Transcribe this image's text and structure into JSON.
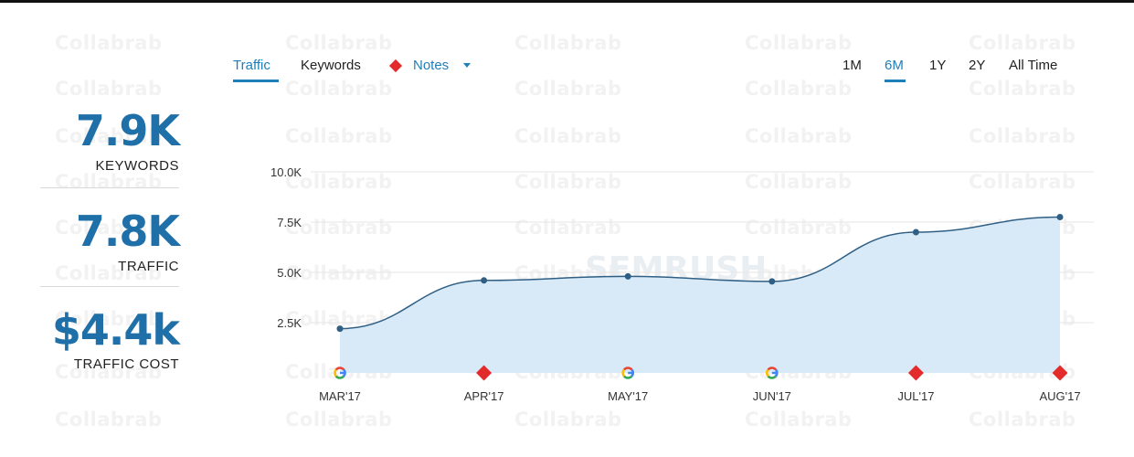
{
  "watermark": "Collabrab",
  "brand_watermark": "SEMRUSH",
  "tabs": [
    {
      "label": "Traffic",
      "active": true
    },
    {
      "label": "Keywords",
      "active": false
    },
    {
      "label": "Notes",
      "active": false
    }
  ],
  "ranges": [
    {
      "label": "1M",
      "active": false
    },
    {
      "label": "6M",
      "active": true
    },
    {
      "label": "1Y",
      "active": false
    },
    {
      "label": "2Y",
      "active": false
    },
    {
      "label": "All Time",
      "active": false
    }
  ],
  "stats": [
    {
      "value": "7.9K",
      "label": "KEYWORDS"
    },
    {
      "value": "7.8K",
      "label": "TRAFFIC"
    },
    {
      "value": "$4.4k",
      "label": "TRAFFIC COST"
    }
  ],
  "colors": {
    "accent": "#1f7fb8",
    "area": "#d8eaf8",
    "line": "#2f5f84",
    "note_red": "#e32b2b"
  },
  "chart_data": {
    "type": "area",
    "categories": [
      "MAR'17",
      "APR'17",
      "MAY'17",
      "JUN'17",
      "JUL'17",
      "AUG'17"
    ],
    "series": [
      {
        "values": [
          2200,
          4600,
          4800,
          4550,
          7000,
          7750
        ]
      }
    ],
    "yticks": [
      "2.5K",
      "5.0K",
      "7.5K",
      "10.0K"
    ],
    "ytick_values": [
      2500,
      5000,
      7500,
      10000
    ],
    "ylim": [
      0,
      10000
    ],
    "grid": true,
    "markers": [
      "google-icon",
      "note-diamond",
      "google-icon",
      "google-icon",
      "note-diamond",
      "note-diamond"
    ]
  }
}
